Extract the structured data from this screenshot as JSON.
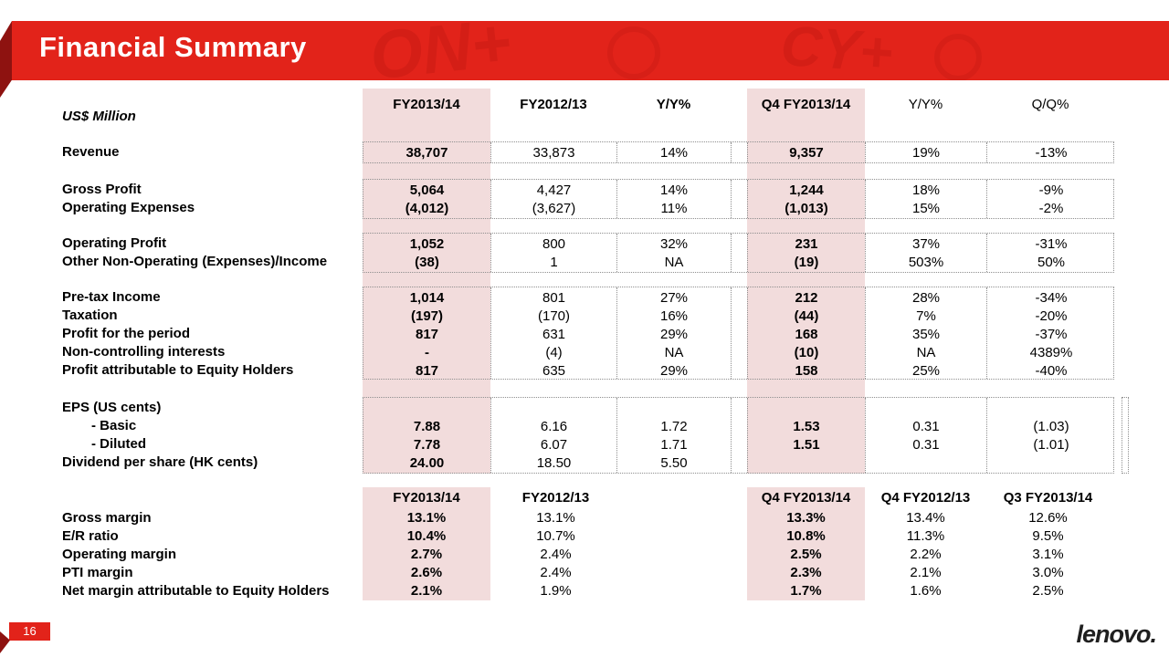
{
  "slide": {
    "title": "Financial Summary",
    "page_number": "16",
    "logo_text": "lenovo.",
    "accent_color": "#E2231A",
    "fold_color": "#8E1210",
    "pink_band_color": "#F2DCDC",
    "dotted_border_color": "#8F8F8F",
    "banner_glyphs": [
      "ON+",
      "CY+"
    ]
  },
  "main_table": {
    "unit_label": "US$ Million",
    "columns": [
      "FY2013/14",
      "FY2012/13",
      "Y/Y%",
      "Q4 FY2013/14",
      "Y/Y%",
      "Q/Q%"
    ],
    "sections": [
      {
        "rows": [
          {
            "label": "Revenue",
            "values": [
              "38,707",
              "33,873",
              "14%",
              "9,357",
              "19%",
              "-13%"
            ]
          }
        ]
      },
      {
        "rows": [
          {
            "label": "Gross Profit",
            "values": [
              "5,064",
              "4,427",
              "14%",
              "1,244",
              "18%",
              "-9%"
            ]
          },
          {
            "label": "Operating Expenses",
            "values": [
              "(4,012)",
              "(3,627)",
              "11%",
              "(1,013)",
              "15%",
              "-2%"
            ]
          }
        ]
      },
      {
        "rows": [
          {
            "label": "Operating Profit",
            "values": [
              "1,052",
              "800",
              "32%",
              "231",
              "37%",
              "-31%"
            ]
          },
          {
            "label": "Other Non-Operating (Expenses)/Income",
            "values": [
              "(38)",
              "1",
              "NA",
              "(19)",
              "503%",
              "50%"
            ]
          }
        ]
      },
      {
        "rows": [
          {
            "label": "Pre-tax Income",
            "values": [
              "1,014",
              "801",
              "27%",
              "212",
              "28%",
              "-34%"
            ]
          },
          {
            "label": "Taxation",
            "values": [
              "(197)",
              "(170)",
              "16%",
              "(44)",
              "7%",
              "-20%"
            ]
          },
          {
            "label": "Profit for the period",
            "values": [
              "817",
              "631",
              "29%",
              "168",
              "35%",
              "-37%"
            ]
          },
          {
            "label": "Non-controlling interests",
            "values": [
              "-",
              "(4)",
              "NA",
              "(10)",
              "NA",
              "4389%"
            ]
          },
          {
            "label": "Profit attributable to Equity Holders",
            "values": [
              "817",
              "635",
              "29%",
              "158",
              "25%",
              "-40%"
            ]
          }
        ]
      },
      {
        "rows": [
          {
            "label": "EPS (US cents)",
            "values": [
              "",
              "",
              "",
              "",
              "",
              ""
            ]
          },
          {
            "label": "- Basic",
            "indent": true,
            "values": [
              "7.88",
              "6.16",
              "1.72",
              "1.53",
              "0.31",
              "(1.03)"
            ]
          },
          {
            "label": "- Diluted",
            "indent": true,
            "values": [
              "7.78",
              "6.07",
              "1.71",
              "1.51",
              "0.31",
              "(1.01)"
            ]
          },
          {
            "label": "Dividend per share (HK cents)",
            "values": [
              "24.00",
              "18.50",
              "5.50",
              "",
              "",
              ""
            ]
          }
        ]
      }
    ]
  },
  "margin_table": {
    "columns": [
      "FY2013/14",
      "FY2012/13",
      "Q4 FY2013/14",
      "Q4 FY2012/13",
      "Q3 FY2013/14"
    ],
    "rows": [
      {
        "label": "Gross margin",
        "values": [
          "13.1%",
          "13.1%",
          "13.3%",
          "13.4%",
          "12.6%"
        ]
      },
      {
        "label": "E/R ratio",
        "values": [
          "10.4%",
          "10.7%",
          "10.8%",
          "11.3%",
          "9.5%"
        ]
      },
      {
        "label": "Operating margin",
        "values": [
          "2.7%",
          "2.4%",
          "2.5%",
          "2.2%",
          "3.1%"
        ]
      },
      {
        "label": "PTI margin",
        "values": [
          "2.6%",
          "2.4%",
          "2.3%",
          "2.1%",
          "3.0%"
        ]
      },
      {
        "label": "Net margin attributable to Equity Holders",
        "values": [
          "2.1%",
          "1.9%",
          "1.7%",
          "1.6%",
          "2.5%"
        ]
      }
    ]
  }
}
